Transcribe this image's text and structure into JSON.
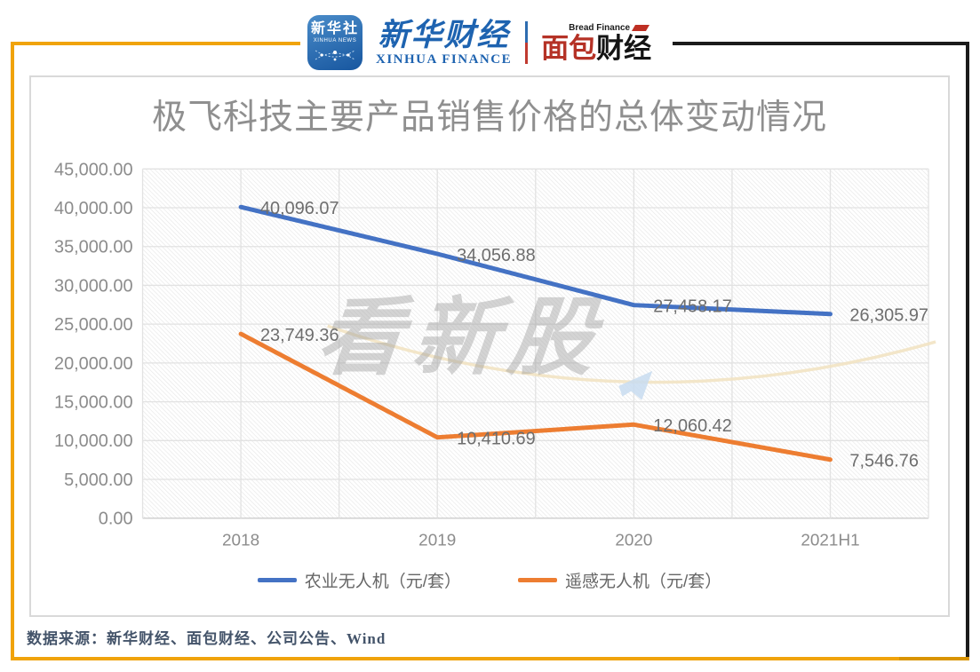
{
  "header": {
    "xinhua_news_badge": {
      "title": "新华社",
      "subtitle": "XINHUA NEWS"
    },
    "xinhua_finance_logo": {
      "cn": "新华财经",
      "en": "XINHUA FINANCE"
    },
    "bread_finance_logo": {
      "en": "Bread Finance",
      "cn_red": "面包",
      "cn_black": "财经"
    }
  },
  "chart_data": {
    "type": "line",
    "title": "极飞科技主要产品销售价格的总体变动情况",
    "categories": [
      "2018",
      "2019",
      "2020",
      "2021H1"
    ],
    "series": [
      {
        "name": "农业无人机（元/套）",
        "color": "#4472C4",
        "values": [
          40096.07,
          34056.88,
          27458.17,
          26305.97
        ],
        "labels": [
          "40,096.07",
          "34,056.88",
          "27,458.17",
          "26,305.97"
        ]
      },
      {
        "name": "遥感无人机（元/套）",
        "color": "#ED7D31",
        "values": [
          23749.36,
          10410.69,
          12060.42,
          7546.76
        ],
        "labels": [
          "23,749.36",
          "10,410.69",
          "12,060.42",
          "7,546.76"
        ]
      }
    ],
    "y_axis": {
      "min": 0,
      "max": 45000,
      "step": 5000,
      "tick_labels": [
        "0.00",
        "5,000.00",
        "10,000.00",
        "15,000.00",
        "20,000.00",
        "25,000.00",
        "30,000.00",
        "35,000.00",
        "40,000.00",
        "45,000.00"
      ]
    },
    "grid": true,
    "legend_position": "bottom"
  },
  "watermark": {
    "text": "看新股"
  },
  "footer": {
    "source": "数据来源：新华财经、面包财经、公司公告、Wind"
  },
  "colors": {
    "frame_yellow": "#F0A30A",
    "frame_black": "#1B1B1B",
    "series_blue": "#4472C4",
    "series_orange": "#ED7D31",
    "grid_line": "#E2E2E2",
    "axis_text": "#8C8C8C",
    "title_text": "#8F8F8F",
    "source_text": "#44546A"
  }
}
